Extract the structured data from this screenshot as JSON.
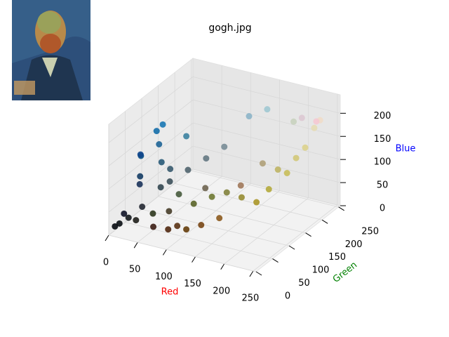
{
  "chart_data": {
    "type": "scatter3d",
    "title": "gogh.jpg",
    "xlabel": "Red",
    "ylabel": "Green",
    "zlabel": "Blue",
    "xlabel_color": "red",
    "ylabel_color": "green",
    "zlabel_color": "blue",
    "xlim": [
      0,
      255
    ],
    "ylim": [
      0,
      255
    ],
    "zlim": [
      0,
      240
    ],
    "xticks": [
      0,
      50,
      100,
      150,
      200,
      250
    ],
    "yticks": [
      0,
      50,
      100,
      150,
      200,
      250
    ],
    "zticks": [
      0,
      50,
      100,
      150,
      200
    ],
    "grid": true,
    "x": [
      10,
      20,
      5,
      30,
      15,
      20,
      10,
      30,
      20,
      40,
      15,
      60,
      25,
      90,
      120,
      80,
      140,
      100,
      60,
      90,
      110,
      70,
      130,
      150,
      180,
      200,
      210,
      190,
      170,
      220,
      230,
      240,
      220,
      140,
      160,
      200,
      245,
      80,
      100,
      120,
      60,
      50,
      35,
      45,
      70,
      25,
      160,
      175,
      110,
      55
    ],
    "y": [
      15,
      25,
      10,
      30,
      20,
      60,
      80,
      100,
      110,
      90,
      70,
      130,
      50,
      50,
      70,
      40,
      90,
      60,
      30,
      100,
      120,
      90,
      130,
      140,
      170,
      190,
      200,
      180,
      150,
      210,
      220,
      220,
      200,
      180,
      200,
      210,
      200,
      100,
      120,
      140,
      80,
      70,
      40,
      55,
      60,
      120,
      120,
      160,
      100,
      90
    ],
    "z": [
      20,
      30,
      15,
      25,
      40,
      100,
      130,
      150,
      170,
      120,
      140,
      160,
      90,
      20,
      20,
      15,
      30,
      10,
      20,
      40,
      50,
      60,
      60,
      50,
      60,
      90,
      120,
      100,
      40,
      140,
      180,
      200,
      210,
      200,
      210,
      190,
      210,
      110,
      130,
      150,
      90,
      80,
      50,
      30,
      40,
      180,
      90,
      120,
      80,
      110
    ]
  }
}
